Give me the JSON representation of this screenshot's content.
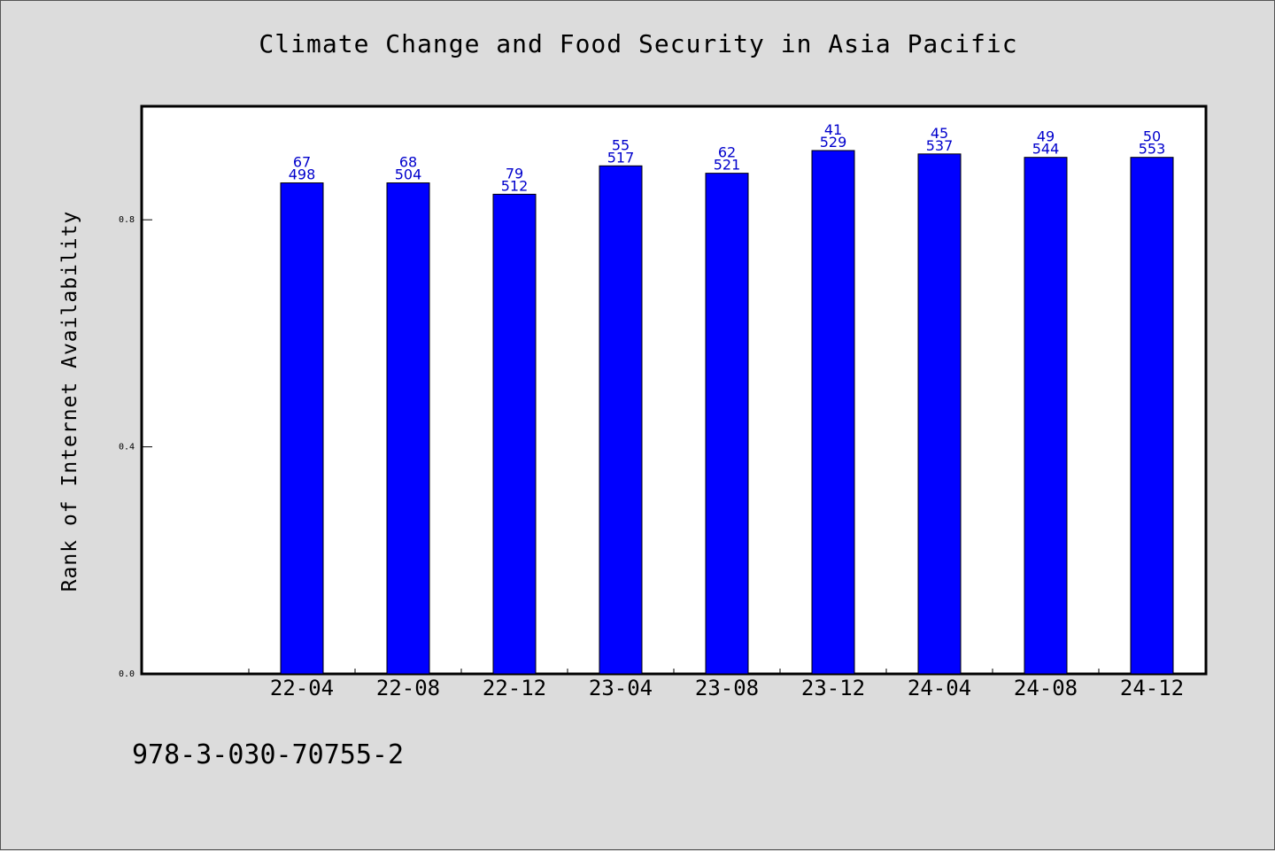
{
  "footer": {
    "code": "978-3-030-70755-2"
  },
  "colors": {
    "background": "#dcdcdc",
    "plot_background": "#ffffff",
    "bar": "#0000ff",
    "bar_label": "#0000cc"
  },
  "chart_data": {
    "type": "bar",
    "title": "Climate Change and Food Security in Asia Pacific",
    "xlabel": "",
    "ylabel": "Rank of Internet Availability",
    "ylim": [
      0.0,
      1.0
    ],
    "yticks": [
      "0.0",
      "0.4",
      "0.8"
    ],
    "grid": false,
    "legend": "none",
    "categories": [
      "22-04",
      "22-08",
      "22-12",
      "23-04",
      "23-08",
      "23-12",
      "24-04",
      "24-08",
      "24-12"
    ],
    "values": [
      0.865,
      0.865,
      0.845,
      0.895,
      0.882,
      0.922,
      0.916,
      0.91,
      0.91
    ],
    "labels_top": [
      "67",
      "68",
      "79",
      "55",
      "62",
      "41",
      "45",
      "49",
      "50"
    ],
    "labels_bottom": [
      "498",
      "504",
      "512",
      "517",
      "521",
      "529",
      "537",
      "544",
      "553"
    ]
  }
}
